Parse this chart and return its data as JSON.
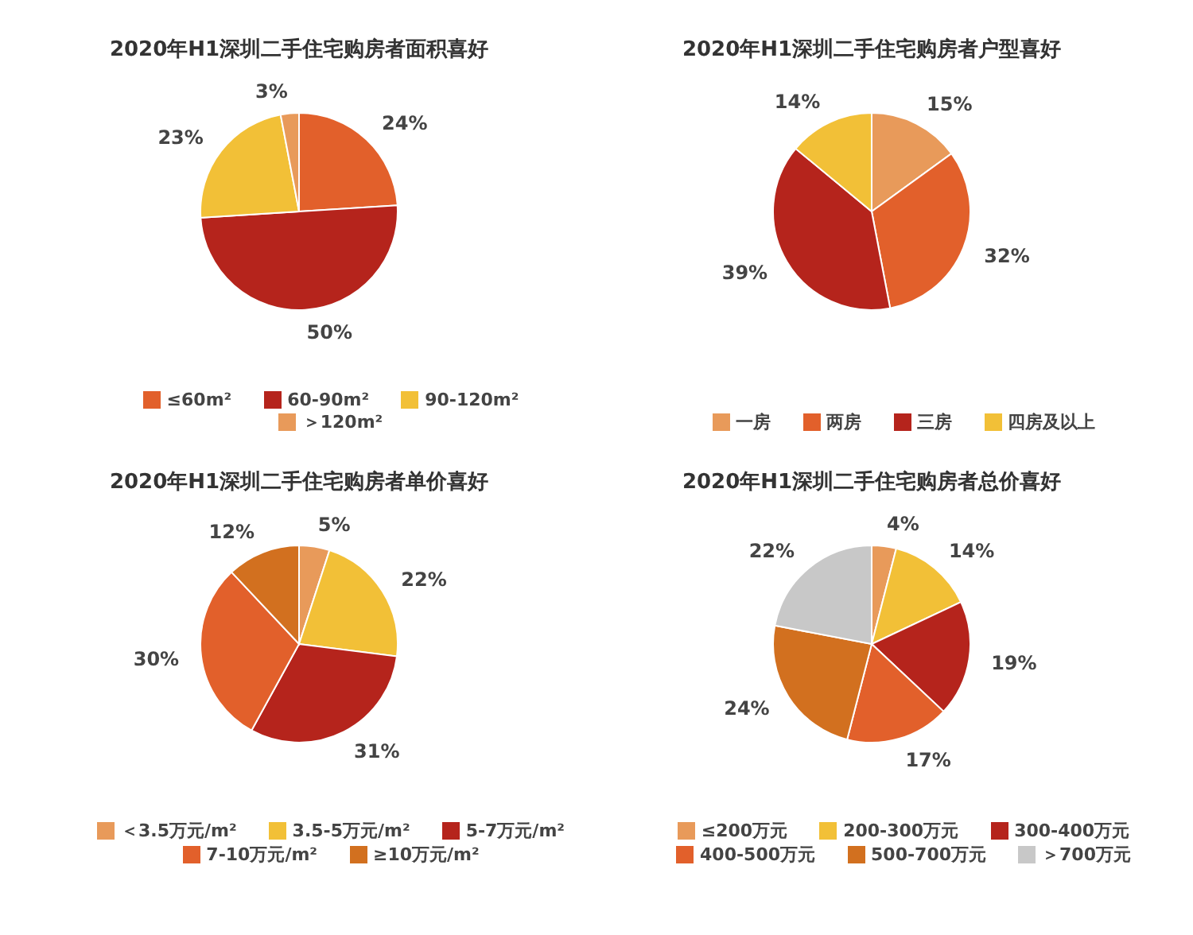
{
  "chart_data": [
    {
      "type": "pie",
      "title": "2020年H1深圳二手住宅购房者面积喜好",
      "categories": [
        "≤60m²",
        "60-90m²",
        "90-120m²",
        "＞120m²"
      ],
      "values": [
        24,
        50,
        23,
        3
      ],
      "value_labels": [
        "24%",
        "50%",
        "23%",
        "3%"
      ],
      "colors": [
        "#e2602b",
        "#b5241c",
        "#f2c037",
        "#e89a5a"
      ],
      "legend": "bottom"
    },
    {
      "type": "pie",
      "title": "2020年H1深圳二手住宅购房者户型喜好",
      "categories": [
        "一房",
        "两房",
        "三房",
        "四房及以上"
      ],
      "values": [
        15,
        32,
        39,
        14
      ],
      "value_labels": [
        "15%",
        "32%",
        "39%",
        "14%"
      ],
      "colors": [
        "#e89a5a",
        "#e2602b",
        "#b5241c",
        "#f2c037"
      ],
      "legend": "bottom"
    },
    {
      "type": "pie",
      "title": "2020年H1深圳二手住宅购房者单价喜好",
      "categories": [
        "＜3.5万元/m²",
        "3.5-5万元/m²",
        "5-7万元/m²",
        "7-10万元/m²",
        "≥10万元/m²"
      ],
      "values": [
        5,
        22,
        31,
        30,
        12
      ],
      "value_labels": [
        "5%",
        "22%",
        "31%",
        "30%",
        "12%"
      ],
      "colors": [
        "#e89a5a",
        "#f2c037",
        "#b5241c",
        "#e2602b",
        "#d2701f"
      ],
      "legend": "bottom"
    },
    {
      "type": "pie",
      "title": "2020年H1深圳二手住宅购房者总价喜好",
      "categories": [
        "≤200万元",
        "200-300万元",
        "300-400万元",
        "400-500万元",
        "500-700万元",
        "＞700万元"
      ],
      "values": [
        4,
        14,
        19,
        17,
        24,
        22
      ],
      "value_labels": [
        "4%",
        "14%",
        "19%",
        "17%",
        "24%",
        "22%"
      ],
      "colors": [
        "#e89a5a",
        "#f2c037",
        "#b5241c",
        "#e2602b",
        "#d2701f",
        "#c8c8c8"
      ],
      "legend": "bottom"
    }
  ]
}
